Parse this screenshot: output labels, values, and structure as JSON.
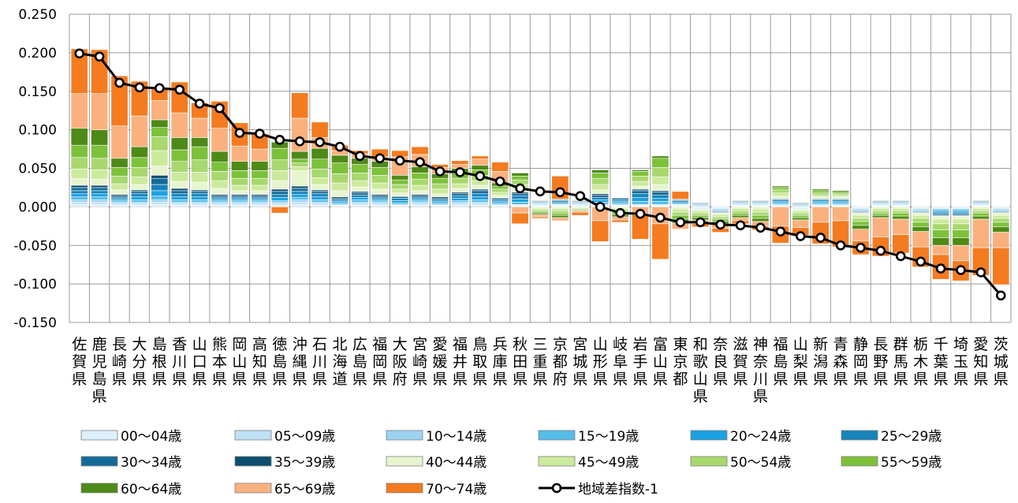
{
  "chart_data": {
    "type": "bar",
    "ylim": [
      -0.15,
      0.25
    ],
    "y_ticks": [
      "0.250",
      "0.200",
      "0.150",
      "0.100",
      "0.050",
      "0.000",
      "-0.050",
      "-0.100",
      "-0.150"
    ],
    "y_tick_values": [
      0.25,
      0.2,
      0.15,
      0.1,
      0.05,
      0.0,
      -0.05,
      -0.1,
      -0.15
    ],
    "grid": true,
    "legend_position": "bottom",
    "categories": [
      "佐賀県",
      "鹿児島県",
      "長崎県",
      "大分県",
      "島根県",
      "香川県",
      "山口県",
      "熊本県",
      "岡山県",
      "高知県",
      "徳島県",
      "沖縄県",
      "石川県",
      "北海道",
      "広島県",
      "福岡県",
      "大阪府",
      "宮崎県",
      "愛媛県",
      "福井県",
      "鳥取県",
      "兵庫県",
      "秋田県",
      "三重県",
      "京都府",
      "宮城県",
      "山形県",
      "岐阜県",
      "岩手県",
      "富山県",
      "東京都",
      "和歌山県",
      "奈良県",
      "滋賀県",
      "神奈川県",
      "福島県",
      "山梨県",
      "新潟県",
      "青森県",
      "静岡県",
      "長野県",
      "群馬県",
      "栃木県",
      "千葉県",
      "埼玉県",
      "愛知県",
      "茨城県"
    ],
    "series": [
      {
        "name": "00〜04歳",
        "color": "#DDEFFB",
        "values": [
          0.003,
          0.003,
          0.002,
          0.002,
          0.003,
          0.002,
          0.002,
          0.002,
          0.002,
          0.002,
          0.002,
          0.003,
          0.002,
          0.001,
          0.002,
          0.002,
          0.001,
          0.002,
          0.001,
          0.002,
          0.002,
          0.001,
          0.001,
          0.001,
          0.001,
          0.001,
          0.001,
          0.001,
          0.001,
          0.001,
          0.001,
          -0.001,
          -0.001,
          0.001,
          0.001,
          0.001,
          -0.001,
          0.001,
          0.001,
          -0.001,
          0.001,
          0.001,
          -0.001,
          -0.001,
          -0.001,
          0.001,
          -0.001
        ]
      },
      {
        "name": "05〜09歳",
        "color": "#BEE1F6",
        "values": [
          0.003,
          0.003,
          0.002,
          0.002,
          0.003,
          0.002,
          0.002,
          0.002,
          0.002,
          0.002,
          0.002,
          0.003,
          0.002,
          0.001,
          0.002,
          0.002,
          0.001,
          0.002,
          0.001,
          0.002,
          0.002,
          0.001,
          0.001,
          0.001,
          0.001,
          0.001,
          0.001,
          0.001,
          0.001,
          0.001,
          0.001,
          -0.001,
          -0.001,
          0.001,
          0.001,
          0.001,
          -0.001,
          0.001,
          0.001,
          -0.001,
          0.001,
          0.001,
          -0.001,
          -0.001,
          -0.001,
          0.001,
          -0.001
        ]
      },
      {
        "name": "10〜14歳",
        "color": "#9BD3F1",
        "values": [
          0.003,
          0.003,
          0.002,
          0.002,
          0.003,
          0.002,
          0.002,
          0.002,
          0.002,
          0.002,
          0.002,
          0.003,
          0.002,
          0.001,
          0.002,
          0.002,
          0.001,
          0.002,
          0.001,
          0.002,
          0.002,
          0.001,
          0.001,
          0.001,
          0.001,
          0.001,
          0.001,
          0.001,
          0.001,
          0.001,
          0.001,
          -0.001,
          -0.001,
          0.001,
          0.001,
          0.001,
          -0.001,
          0.001,
          0.001,
          -0.001,
          0.001,
          0.001,
          -0.001,
          -0.001,
          -0.001,
          0.001,
          -0.001
        ]
      },
      {
        "name": "15〜19歳",
        "color": "#55BCE8",
        "values": [
          0.004,
          0.004,
          0.002,
          0.003,
          0.005,
          0.003,
          0.003,
          0.002,
          0.002,
          0.002,
          0.002,
          0.003,
          0.003,
          0.002,
          0.003,
          0.002,
          0.002,
          0.002,
          0.002,
          0.002,
          0.003,
          0.002,
          0.003,
          0.001,
          0.001,
          0.001,
          0.003,
          0.002,
          0.004,
          0.004,
          0.001,
          0.001,
          -0.001,
          0.001,
          0.001,
          0.002,
          0.001,
          0.002,
          0.002,
          -0.001,
          0.001,
          0.001,
          -0.001,
          -0.002,
          -0.002,
          0.001,
          -0.001
        ]
      },
      {
        "name": "20〜24歳",
        "color": "#1BA1E2",
        "values": [
          0.004,
          0.004,
          0.002,
          0.004,
          0.007,
          0.004,
          0.004,
          0.002,
          0.002,
          0.002,
          0.004,
          0.004,
          0.004,
          0.002,
          0.003,
          0.002,
          0.003,
          0.002,
          0.002,
          0.003,
          0.004,
          0.002,
          0.004,
          0.001,
          0.002,
          0.001,
          0.003,
          0.002,
          0.005,
          0.004,
          0.002,
          0.001,
          -0.001,
          0.001,
          0.001,
          0.002,
          0.001,
          0.002,
          0.002,
          -0.001,
          0.001,
          0.001,
          -0.001,
          -0.002,
          -0.002,
          0.001,
          -0.001
        ]
      },
      {
        "name": "25〜29歳",
        "color": "#1683BA",
        "values": [
          0.004,
          0.004,
          0.002,
          0.004,
          0.008,
          0.004,
          0.004,
          0.002,
          0.002,
          0.002,
          0.004,
          0.004,
          0.004,
          0.002,
          0.003,
          0.002,
          0.003,
          0.002,
          0.002,
          0.003,
          0.004,
          0.002,
          0.004,
          0.001,
          0.002,
          0.001,
          0.003,
          0.002,
          0.005,
          0.004,
          0.002,
          0.001,
          -0.001,
          0.001,
          0.001,
          0.002,
          0.001,
          0.002,
          0.002,
          -0.001,
          0.001,
          0.001,
          -0.001,
          -0.002,
          -0.002,
          0.001,
          -0.001
        ]
      },
      {
        "name": "30〜34歳",
        "color": "#136B98",
        "values": [
          0.004,
          0.004,
          0.002,
          0.003,
          0.008,
          0.004,
          0.003,
          0.002,
          0.002,
          0.002,
          0.004,
          0.004,
          0.003,
          0.002,
          0.003,
          0.002,
          0.002,
          0.002,
          0.002,
          0.003,
          0.004,
          0.002,
          0.003,
          0.001,
          0.001,
          0.001,
          0.003,
          0.002,
          0.004,
          0.004,
          0.001,
          0.001,
          -0.001,
          0.001,
          0.001,
          0.001,
          0.001,
          0.001,
          0.001,
          -0.001,
          0.001,
          0.001,
          -0.001,
          -0.002,
          -0.002,
          0.001,
          -0.001
        ]
      },
      {
        "name": "35〜39歳",
        "color": "#0D4D6E",
        "values": [
          0.003,
          0.003,
          0.002,
          0.002,
          0.004,
          0.003,
          0.002,
          0.002,
          0.002,
          0.002,
          0.003,
          0.003,
          0.002,
          0.002,
          0.002,
          0.002,
          0.001,
          0.002,
          0.002,
          0.002,
          0.002,
          0.001,
          0.002,
          0.001,
          0.001,
          0.001,
          0.002,
          0.001,
          0.002,
          0.002,
          0.001,
          0.001,
          -0.001,
          0.001,
          0.001,
          0.001,
          0.001,
          0.001,
          0.001,
          -0.001,
          0.001,
          0.001,
          -0.001,
          -0.001,
          -0.001,
          0.001,
          -0.001
        ]
      },
      {
        "name": "40〜44歳",
        "color": "#E7F5CF",
        "values": [
          0.009,
          0.008,
          0.006,
          0.007,
          0.012,
          0.009,
          0.01,
          0.008,
          0.005,
          0.005,
          0.011,
          0.02,
          0.007,
          0.008,
          0.006,
          0.007,
          0.004,
          0.005,
          0.004,
          0.005,
          0.005,
          0.003,
          0.004,
          -0.002,
          -0.002,
          -0.001,
          0.005,
          -0.002,
          0.004,
          0.008,
          -0.003,
          -0.002,
          -0.002,
          -0.002,
          -0.003,
          0.003,
          -0.002,
          0.002,
          0.002,
          -0.003,
          -0.002,
          -0.002,
          -0.003,
          -0.004,
          -0.004,
          -0.002,
          -0.003
        ]
      },
      {
        "name": "45〜49歳",
        "color": "#CCEA9C",
        "values": [
          0.012,
          0.012,
          0.008,
          0.01,
          0.02,
          0.012,
          0.013,
          0.01,
          0.007,
          0.007,
          0.013,
          0.005,
          0.009,
          0.01,
          0.008,
          0.008,
          0.005,
          0.007,
          0.006,
          0.006,
          0.006,
          0.004,
          0.006,
          -0.002,
          -0.003,
          -0.001,
          0.007,
          -0.002,
          0.006,
          0.01,
          -0.004,
          -0.003,
          -0.003,
          -0.003,
          -0.004,
          0.004,
          -0.003,
          0.002,
          0.002,
          -0.004,
          -0.003,
          -0.003,
          -0.004,
          -0.006,
          -0.006,
          -0.003,
          -0.004
        ]
      },
      {
        "name": "50〜54歳",
        "color": "#A8D86E",
        "values": [
          0.015,
          0.015,
          0.01,
          0.012,
          0.018,
          0.014,
          0.016,
          0.012,
          0.009,
          0.009,
          0.014,
          0.005,
          0.011,
          0.012,
          0.01,
          0.01,
          0.006,
          0.008,
          0.007,
          0.007,
          0.007,
          0.004,
          0.006,
          -0.002,
          -0.003,
          -0.001,
          0.008,
          -0.003,
          0.007,
          0.012,
          -0.004,
          -0.003,
          -0.003,
          -0.003,
          -0.004,
          0.004,
          -0.003,
          0.003,
          0.002,
          -0.004,
          -0.003,
          -0.003,
          -0.005,
          -0.008,
          -0.008,
          -0.003,
          -0.005
        ]
      },
      {
        "name": "55〜59歳",
        "color": "#7DC13A",
        "values": [
          0.016,
          0.017,
          0.011,
          0.013,
          0.012,
          0.015,
          0.017,
          0.012,
          0.01,
          0.01,
          0.015,
          0.005,
          0.013,
          0.014,
          0.011,
          0.01,
          0.006,
          0.008,
          0.007,
          0.007,
          0.007,
          0.004,
          0.005,
          -0.002,
          -0.003,
          -0.001,
          0.007,
          -0.003,
          0.006,
          0.012,
          -0.005,
          -0.003,
          -0.003,
          -0.003,
          -0.004,
          0.003,
          -0.003,
          0.003,
          0.002,
          -0.005,
          -0.003,
          -0.004,
          -0.006,
          -0.01,
          -0.01,
          -0.004,
          -0.006
        ]
      },
      {
        "name": "60〜64歳",
        "color": "#4E8A17",
        "values": [
          0.022,
          0.02,
          0.012,
          0.014,
          0.01,
          0.016,
          0.012,
          0.014,
          0.012,
          0.012,
          0.008,
          0.01,
          0.014,
          0.01,
          0.008,
          0.008,
          0.006,
          0.008,
          0.006,
          0.006,
          0.006,
          0.004,
          0.004,
          -0.002,
          -0.003,
          -0.001,
          0.004,
          -0.003,
          0.002,
          0.003,
          -0.005,
          -0.003,
          -0.003,
          -0.003,
          -0.004,
          0.002,
          -0.003,
          0.002,
          0.002,
          -0.005,
          -0.003,
          -0.004,
          -0.006,
          -0.01,
          -0.01,
          -0.004,
          -0.007
        ]
      },
      {
        "name": "65〜69歳",
        "color": "#FBB17E",
        "values": [
          0.045,
          0.047,
          0.042,
          0.04,
          0.025,
          0.032,
          0.025,
          0.03,
          0.02,
          0.016,
          0.0,
          0.043,
          0.014,
          0.006,
          0.006,
          0.006,
          0.024,
          0.016,
          0.008,
          0.005,
          0.008,
          0.015,
          -0.008,
          -0.003,
          -0.004,
          -0.002,
          -0.018,
          -0.004,
          -0.01,
          -0.022,
          -0.008,
          -0.005,
          -0.006,
          -0.004,
          -0.006,
          -0.025,
          -0.01,
          -0.02,
          -0.018,
          -0.015,
          -0.025,
          -0.02,
          -0.02,
          -0.012,
          -0.02,
          -0.037,
          -0.02
        ]
      },
      {
        "name": "70〜74歳",
        "color": "#F47B20",
        "values": [
          0.058,
          0.057,
          0.065,
          0.045,
          0.017,
          0.04,
          0.02,
          0.035,
          0.03,
          0.02,
          -0.008,
          0.033,
          0.02,
          0.007,
          0.004,
          0.01,
          0.008,
          0.01,
          0.004,
          0.005,
          0.004,
          0.012,
          -0.014,
          -0.002,
          0.03,
          -0.004,
          -0.027,
          -0.003,
          -0.032,
          -0.046,
          0.01,
          -0.004,
          -0.005,
          -0.004,
          -0.005,
          -0.022,
          -0.01,
          -0.028,
          -0.034,
          -0.018,
          -0.025,
          -0.024,
          -0.026,
          -0.032,
          -0.026,
          -0.036,
          -0.048
        ]
      }
    ],
    "line": {
      "name": "地域差指数-1",
      "color": "#000000",
      "values": [
        0.199,
        0.195,
        0.161,
        0.155,
        0.154,
        0.152,
        0.134,
        0.128,
        0.096,
        0.095,
        0.087,
        0.085,
        0.084,
        0.078,
        0.066,
        0.063,
        0.06,
        0.058,
        0.046,
        0.045,
        0.04,
        0.033,
        0.024,
        0.02,
        0.019,
        0.014,
        0.0,
        -0.008,
        -0.009,
        -0.014,
        -0.02,
        -0.02,
        -0.023,
        -0.024,
        -0.027,
        -0.032,
        -0.038,
        -0.04,
        -0.05,
        -0.053,
        -0.057,
        -0.064,
        -0.071,
        -0.08,
        -0.082,
        -0.085,
        -0.115
      ]
    }
  }
}
